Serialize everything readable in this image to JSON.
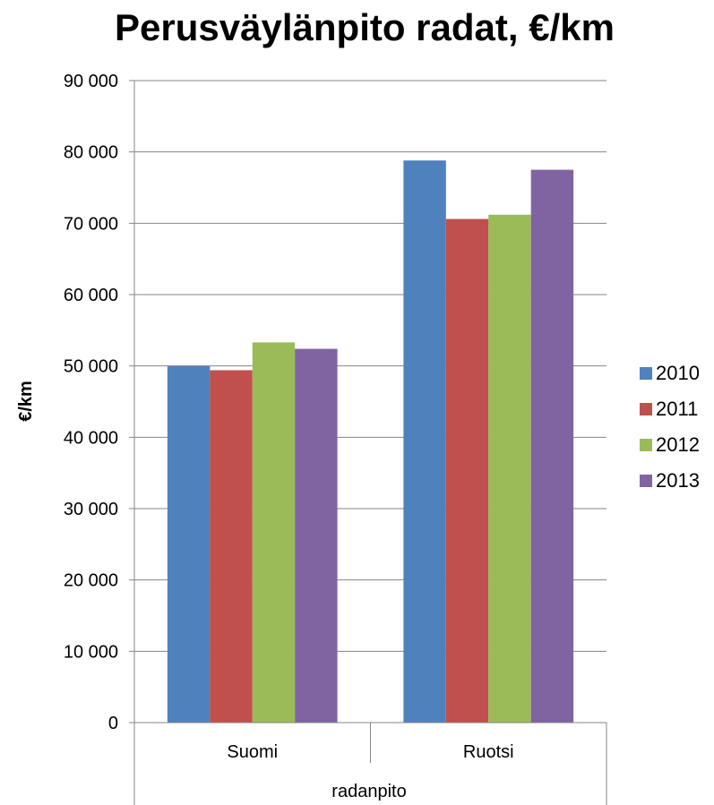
{
  "chart_data": {
    "type": "bar",
    "title": "Perusväylänpito radat, €/km",
    "ylabel": "€/km",
    "xlabel": "radanpito",
    "categories": [
      "Suomi",
      "Ruotsi"
    ],
    "series": [
      {
        "name": "2010",
        "color": "#4F81BD",
        "values": [
          50000,
          78800
        ]
      },
      {
        "name": "2011",
        "color": "#C0504D",
        "values": [
          49400,
          70600
        ]
      },
      {
        "name": "2012",
        "color": "#9BBB59",
        "values": [
          53300,
          71200
        ]
      },
      {
        "name": "2013",
        "color": "#8064A2",
        "values": [
          52400,
          77500
        ]
      }
    ],
    "ylim": [
      0,
      90000
    ],
    "yticks": [
      0,
      10000,
      20000,
      30000,
      40000,
      50000,
      60000,
      70000,
      80000,
      90000
    ],
    "ytick_labels": [
      "0",
      "10 000",
      "20 000",
      "30 000",
      "40 000",
      "50 000",
      "60 000",
      "70 000",
      "80 000",
      "90 000"
    ],
    "grid": true,
    "legend_position": "right"
  }
}
